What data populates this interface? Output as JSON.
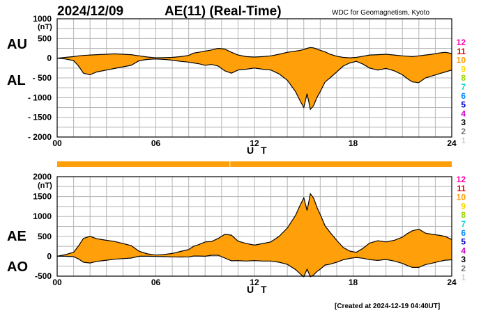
{
  "header": {
    "date": "2024/12/09",
    "title": "AE(11) (Real-Time)",
    "source": "WDC for Geomagnetism, Kyoto"
  },
  "footer": {
    "created": "[Created at 2024-12-19 04:40UT]"
  },
  "colors": {
    "fill": "#ffa00a",
    "line": "#000000",
    "grid": "#b5b5b5",
    "bar": "#ff9f0a"
  },
  "level_legend": [
    {
      "label": "12",
      "color": "#ff00aa"
    },
    {
      "label": "11",
      "color": "#e00000"
    },
    {
      "label": "10",
      "color": "#ff9900"
    },
    {
      "label": "9",
      "color": "#ffd500"
    },
    {
      "label": "8",
      "color": "#9ad600"
    },
    {
      "label": "7",
      "color": "#00d8c8"
    },
    {
      "label": "6",
      "color": "#0088ff"
    },
    {
      "label": "5",
      "color": "#0000cc"
    },
    {
      "label": "4",
      "color": "#cc00cc"
    },
    {
      "label": "3",
      "color": "#000000"
    },
    {
      "label": "2",
      "color": "#777777"
    },
    {
      "label": "1",
      "color": "#cfcfcf"
    }
  ],
  "chart_data": [
    {
      "type": "area",
      "panel": "AU/AL",
      "series_labels": [
        "AU",
        "AL"
      ],
      "unit": "(nT)",
      "xlabel": "U T",
      "x_ticks": [
        "00",
        "06",
        "12",
        "18",
        "24"
      ],
      "xlim": [
        0,
        24
      ],
      "y_ticks": [
        "1000",
        "500",
        "0",
        "- 500",
        "- 1000",
        "- 1500",
        "- 2000"
      ],
      "ylim": [
        -2000,
        1000
      ],
      "grid": true,
      "x": [
        0,
        0.5,
        1.0,
        1.3,
        1.6,
        2.0,
        2.4,
        3.0,
        3.5,
        4.0,
        4.5,
        5.0,
        5.5,
        6.0,
        6.5,
        7.0,
        7.5,
        8.0,
        8.3,
        8.6,
        9.0,
        9.4,
        9.8,
        10.2,
        10.6,
        11.0,
        11.5,
        12.0,
        12.5,
        13.0,
        13.5,
        14.0,
        14.5,
        14.8,
        15.0,
        15.2,
        15.4,
        15.6,
        15.8,
        16.0,
        16.3,
        16.6,
        17.0,
        17.4,
        17.8,
        18.2,
        18.6,
        19.0,
        19.5,
        20.0,
        20.5,
        21.0,
        21.3,
        21.6,
        22.0,
        22.4,
        22.8,
        23.2,
        23.6,
        24.0
      ],
      "au": [
        0,
        20,
        40,
        60,
        70,
        80,
        90,
        100,
        110,
        100,
        90,
        60,
        30,
        10,
        15,
        20,
        40,
        70,
        130,
        150,
        180,
        210,
        250,
        230,
        150,
        80,
        40,
        30,
        40,
        60,
        100,
        150,
        180,
        200,
        220,
        250,
        270,
        260,
        230,
        200,
        160,
        100,
        50,
        20,
        10,
        20,
        50,
        80,
        90,
        100,
        80,
        60,
        50,
        40,
        60,
        80,
        100,
        130,
        150,
        120
      ],
      "al": [
        0,
        -20,
        -60,
        -200,
        -380,
        -420,
        -350,
        -300,
        -260,
        -220,
        -180,
        -60,
        -30,
        -20,
        -30,
        -50,
        -80,
        -100,
        -120,
        -140,
        -180,
        -160,
        -200,
        -320,
        -380,
        -300,
        -280,
        -250,
        -280,
        -300,
        -400,
        -560,
        -850,
        -1100,
        -1250,
        -900,
        -1300,
        -1200,
        -1000,
        -850,
        -600,
        -500,
        -350,
        -200,
        -120,
        -80,
        -150,
        -250,
        -300,
        -260,
        -320,
        -420,
        -520,
        -600,
        -620,
        -500,
        -450,
        -400,
        -350,
        -300
      ]
    },
    {
      "type": "area",
      "panel": "AE/AO",
      "series_labels": [
        "AE",
        "AO"
      ],
      "unit": "(nT)",
      "xlabel": "U T",
      "x_ticks": [
        "00",
        "06",
        "12",
        "18",
        "24"
      ],
      "xlim": [
        0,
        24
      ],
      "y_ticks": [
        "2000",
        "1500",
        "1000",
        "500",
        "0",
        "-500"
      ],
      "ylim": [
        -500,
        2000
      ],
      "grid": true,
      "x": [
        0,
        0.5,
        1.0,
        1.3,
        1.6,
        2.0,
        2.4,
        3.0,
        3.5,
        4.0,
        4.5,
        5.0,
        5.5,
        6.0,
        6.5,
        7.0,
        7.5,
        8.0,
        8.3,
        8.6,
        9.0,
        9.4,
        9.8,
        10.2,
        10.6,
        11.0,
        11.5,
        12.0,
        12.5,
        13.0,
        13.5,
        14.0,
        14.5,
        14.8,
        15.0,
        15.2,
        15.4,
        15.6,
        15.8,
        16.0,
        16.3,
        16.6,
        17.0,
        17.4,
        17.8,
        18.2,
        18.6,
        19.0,
        19.5,
        20.0,
        20.5,
        21.0,
        21.3,
        21.6,
        22.0,
        22.4,
        22.8,
        23.2,
        23.6,
        24.0
      ],
      "ae": [
        0,
        40,
        100,
        260,
        450,
        500,
        440,
        400,
        370,
        320,
        270,
        120,
        60,
        30,
        45,
        70,
        120,
        170,
        250,
        290,
        360,
        370,
        450,
        550,
        530,
        380,
        320,
        280,
        320,
        360,
        500,
        710,
        1030,
        1300,
        1470,
        1150,
        1570,
        1460,
        1230,
        1050,
        760,
        600,
        400,
        220,
        130,
        100,
        200,
        330,
        390,
        360,
        400,
        480,
        570,
        640,
        680,
        580,
        550,
        530,
        500,
        420
      ],
      "ao": [
        0,
        0,
        -10,
        -70,
        -150,
        -170,
        -130,
        -100,
        -75,
        -60,
        -45,
        0,
        0,
        -5,
        -8,
        -15,
        -20,
        -15,
        5,
        5,
        0,
        25,
        25,
        -45,
        -115,
        -110,
        -120,
        -110,
        -120,
        -120,
        -150,
        -205,
        -335,
        -450,
        -515,
        -325,
        -515,
        -470,
        -385,
        -325,
        -220,
        -200,
        -150,
        -90,
        -55,
        -30,
        -50,
        -85,
        -105,
        -80,
        -120,
        -180,
        -235,
        -280,
        -280,
        -210,
        -175,
        -135,
        -100,
        -90
      ]
    }
  ]
}
